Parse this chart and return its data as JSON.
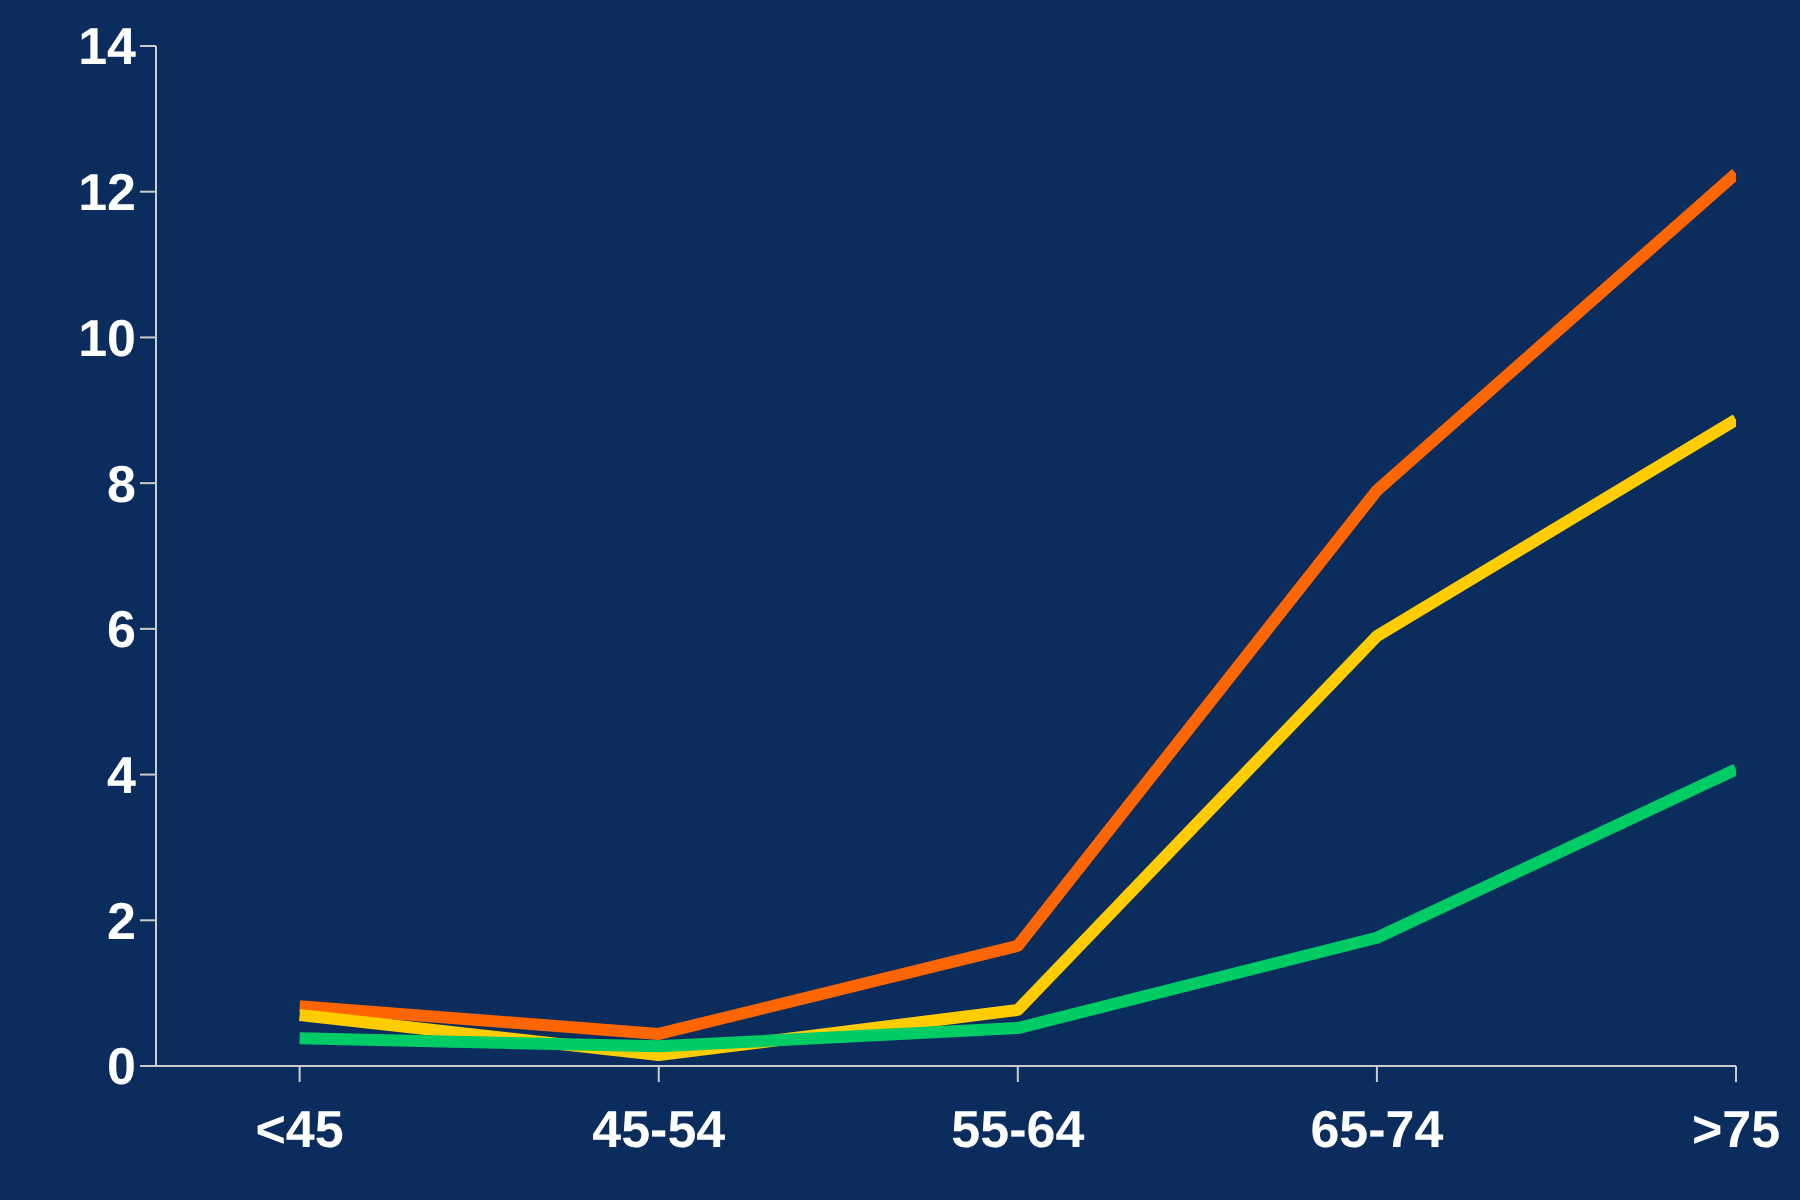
{
  "chart_data": {
    "type": "line",
    "categories": [
      "<45",
      "45-54",
      "55-64",
      "65-74",
      ">75"
    ],
    "ylim": [
      0,
      14
    ],
    "yticks": [
      0,
      2,
      4,
      6,
      8,
      10,
      12,
      14
    ],
    "grid": false,
    "legend": false,
    "marker": "none",
    "line_style": "solid",
    "series": [
      {
        "color": "#ff6600",
        "values": [
          0.82,
          0.44,
          1.65,
          7.9,
          12.25
        ]
      },
      {
        "color": "#ffcc00",
        "values": [
          0.7,
          0.15,
          0.77,
          5.9,
          8.87
        ]
      },
      {
        "color": "#00cc66",
        "values": [
          0.38,
          0.27,
          0.52,
          1.76,
          4.07
        ]
      }
    ]
  }
}
